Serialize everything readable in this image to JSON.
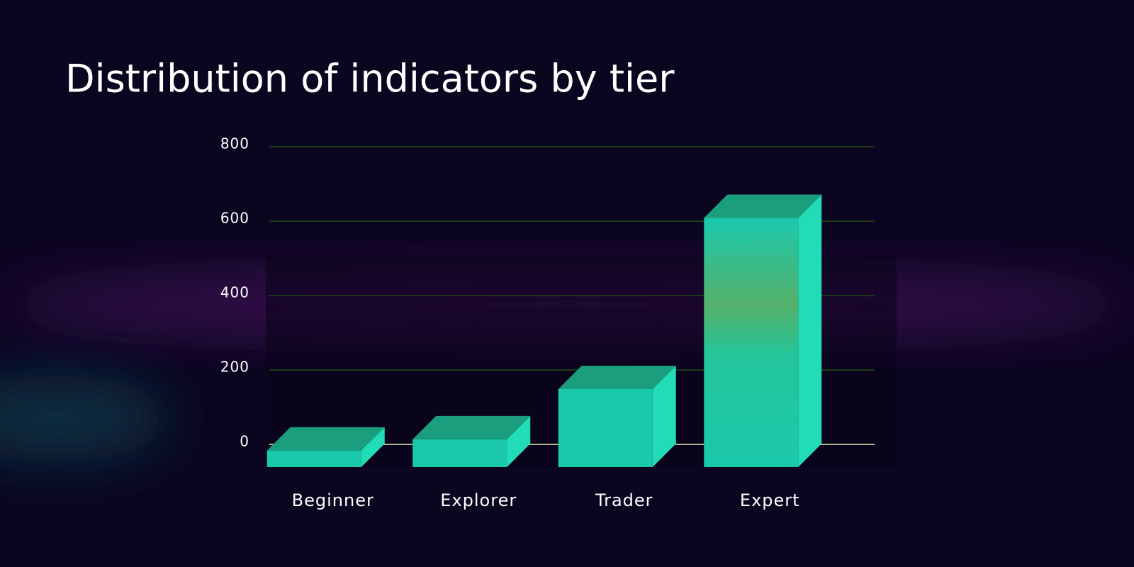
{
  "chart_data": {
    "type": "bar3d",
    "title": "Distribution of indicators by tier",
    "categories": [
      "Beginner",
      "Explorer",
      "Trader",
      "Expert"
    ],
    "values": [
      15,
      45,
      180,
      640
    ],
    "color": "#1ac9ab",
    "ylim": [
      0,
      800
    ],
    "yticks": [
      0,
      200,
      400,
      600,
      800
    ],
    "grid": true
  }
}
